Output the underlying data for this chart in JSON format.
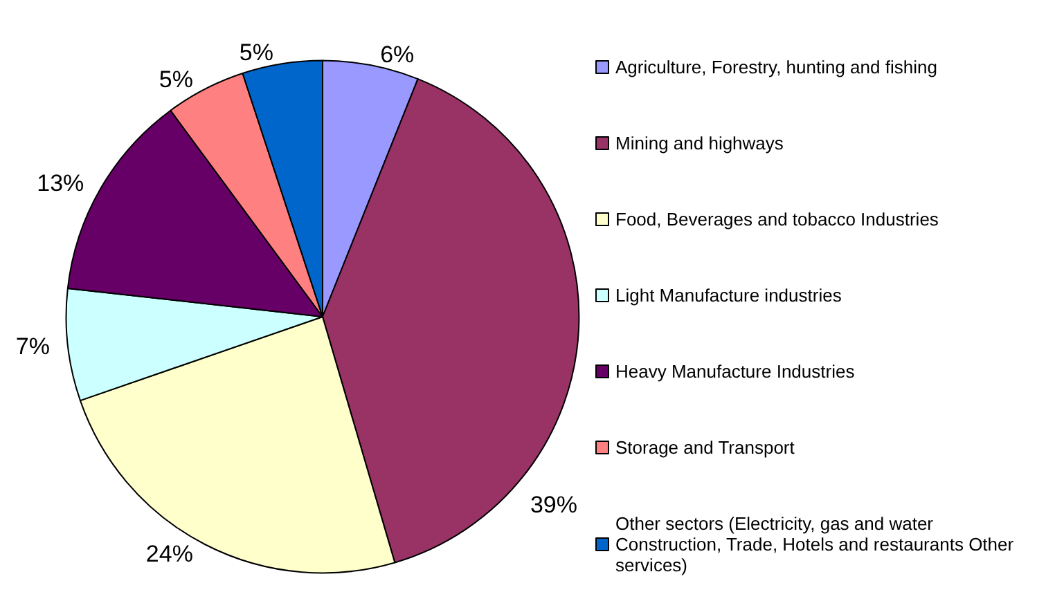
{
  "chart_data": {
    "type": "pie",
    "categories": [
      "Agriculture, Forestry, hunting and fishing",
      "Mining and highways",
      "Food, Beverages and tobacco Industries",
      "Light Manufacture industries",
      "Heavy Manufacture Industries",
      "Storage and Transport",
      "Other sectors (Electricity, gas and water Construction, Trade, Hotels and restaurants Other services)"
    ],
    "values": [
      6,
      39,
      24,
      7,
      13,
      5,
      5
    ],
    "value_labels": [
      "6%",
      "39%",
      "24%",
      "7%",
      "13%",
      "5%",
      "5%"
    ],
    "colors": [
      "#9999ff",
      "#993366",
      "#ffffcc",
      "#ccffff",
      "#660066",
      "#ff8080",
      "#0066cc"
    ],
    "legend": "right"
  }
}
